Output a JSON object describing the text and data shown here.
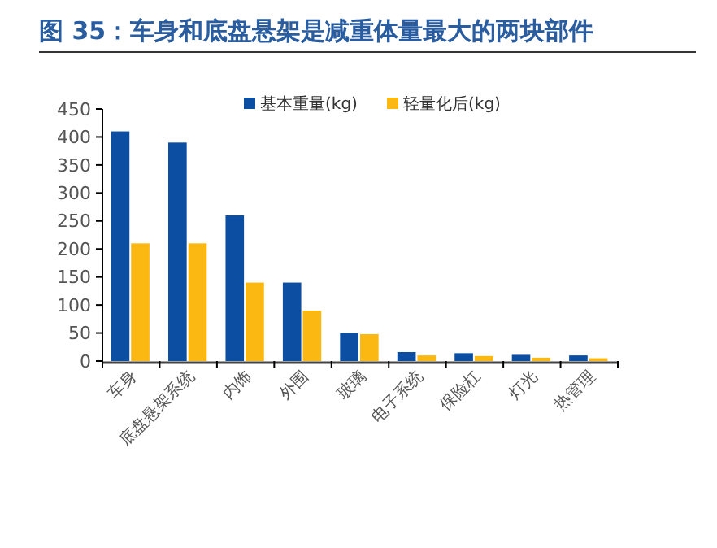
{
  "chart_data": {
    "type": "bar",
    "title": "图 35：车身和底盘悬架是减重体量最大的两块部件",
    "categories": [
      "车身",
      "底盘悬架系统",
      "内饰",
      "外围",
      "玻璃",
      "电子系统",
      "保险杠",
      "灯光",
      "热管理"
    ],
    "series": [
      {
        "name": "基本重量(kg)",
        "color": "#0b4ea2",
        "values": [
          410,
          390,
          260,
          140,
          50,
          16,
          14,
          11,
          10
        ]
      },
      {
        "name": "轻量化后(kg)",
        "color": "#fbb812",
        "values": [
          210,
          210,
          140,
          90,
          48,
          10,
          9,
          6,
          5
        ]
      }
    ],
    "ylim": [
      0,
      450
    ],
    "yticks": [
      0,
      50,
      100,
      150,
      200,
      250,
      300,
      350,
      400,
      450
    ],
    "grid": false,
    "legend": "top"
  }
}
